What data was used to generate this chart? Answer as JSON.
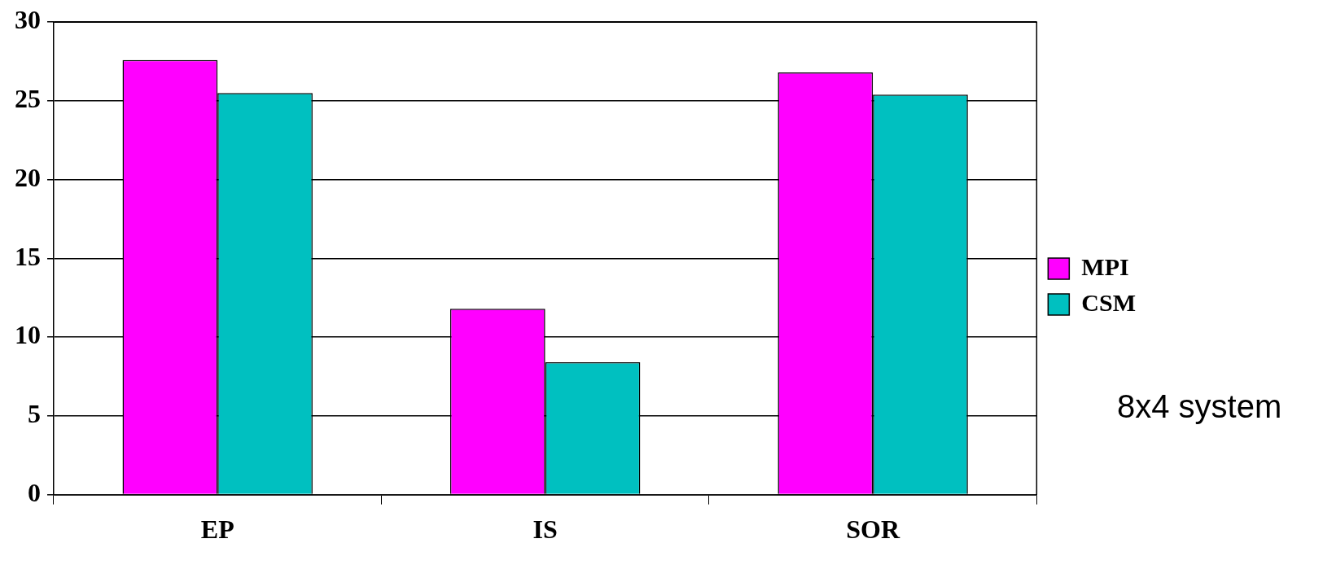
{
  "chart_data": {
    "type": "bar",
    "categories": [
      "EP",
      "IS",
      "SOR"
    ],
    "series": [
      {
        "name": "MPI",
        "color": "#ff00ff",
        "values": [
          27.6,
          11.8,
          26.8
        ]
      },
      {
        "name": "CSM",
        "color": "#00c0c0",
        "values": [
          25.5,
          8.4,
          25.4
        ]
      }
    ],
    "ylim": [
      0,
      30
    ],
    "yticks": [
      0,
      5,
      10,
      15,
      20,
      25,
      30
    ],
    "grid": "y",
    "legend": "right",
    "annotations": [
      "8x4 system"
    ]
  }
}
